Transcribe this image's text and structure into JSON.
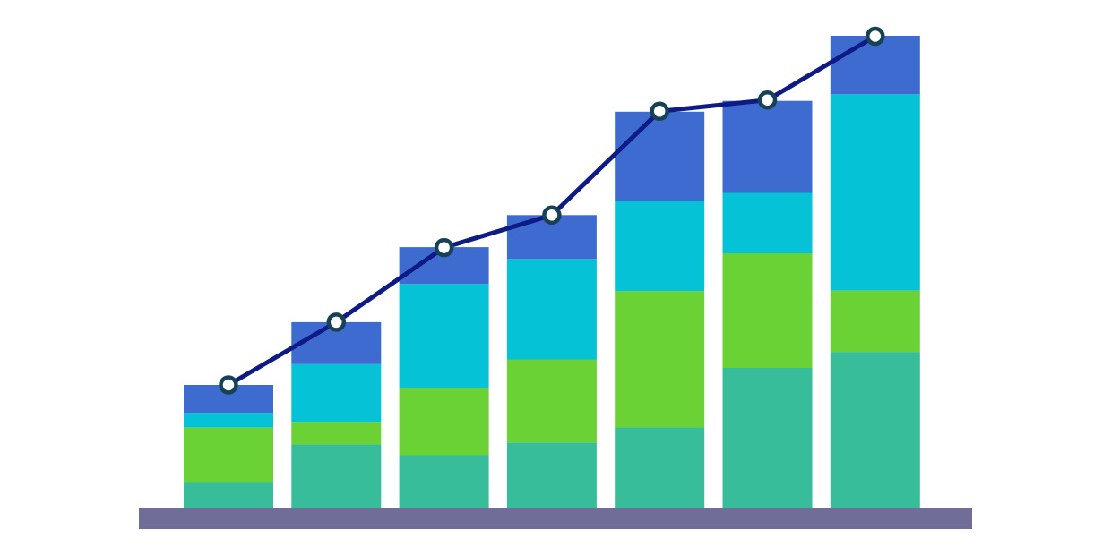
{
  "chart_data": {
    "type": "bar",
    "stacked": true,
    "overlay": "line",
    "title": "",
    "xlabel": "",
    "ylabel": "",
    "categories": [
      "",
      "",
      "",
      "",
      "",
      "",
      ""
    ],
    "ylim": [
      0,
      100
    ],
    "grid": false,
    "legend": "none",
    "series": [
      {
        "color": "#37BD9A",
        "values": [
          5.3,
          13.4,
          11.1,
          13.8,
          17.0,
          29.6,
          33.0
        ]
      },
      {
        "color": "#6AD234",
        "values": [
          11.7,
          4.8,
          14.3,
          17.6,
          28.9,
          24.3,
          13.0
        ]
      },
      {
        "color": "#06C2D6",
        "values": [
          3.1,
          12.2,
          22.0,
          21.3,
          19.1,
          12.8,
          41.6
        ]
      },
      {
        "color": "#3E6BCF",
        "values": [
          5.9,
          8.9,
          7.8,
          9.3,
          18.9,
          19.5,
          12.4
        ]
      }
    ],
    "line": {
      "color": "#0E1A86",
      "marker_stroke": "#174256",
      "marker_fill": "#FFFFFF",
      "values": [
        26.0,
        39.3,
        55.1,
        62.0,
        84.0,
        86.4,
        99.9
      ]
    },
    "baseline_color": "#706E98"
  }
}
